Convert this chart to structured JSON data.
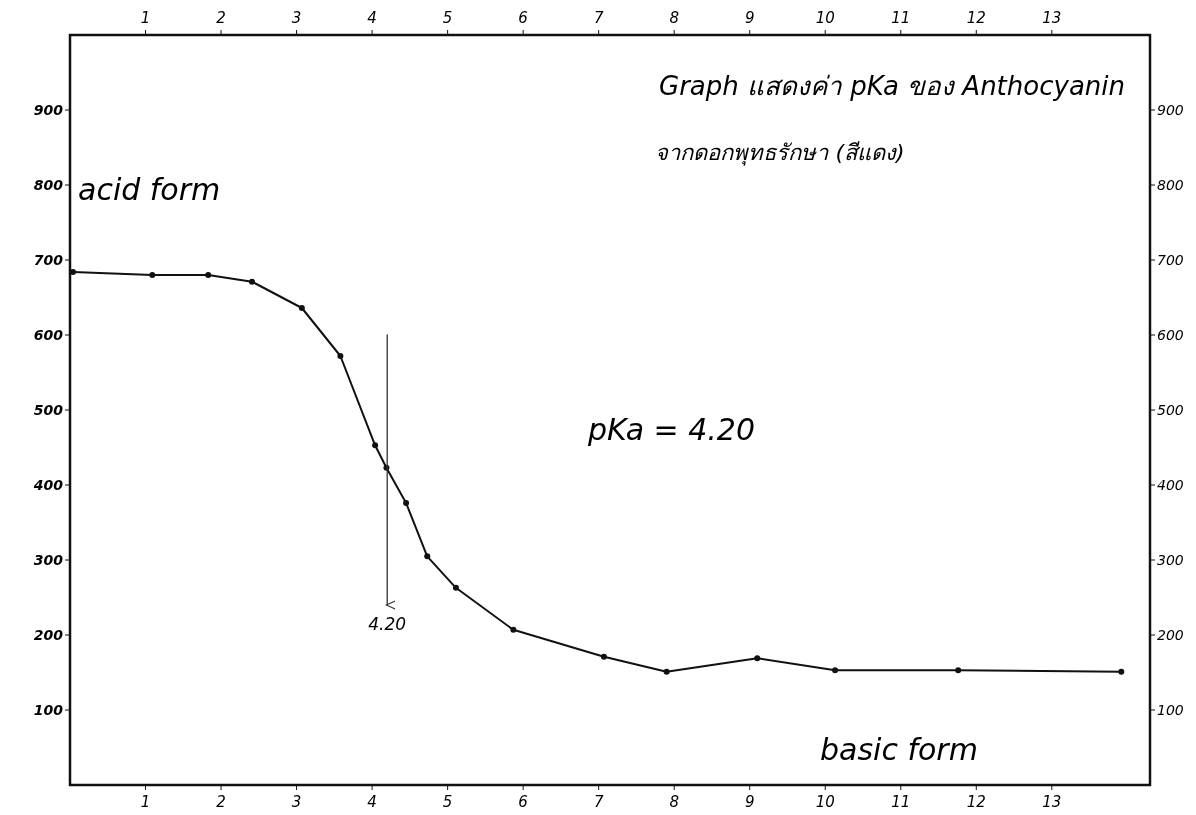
{
  "chart_data": {
    "type": "line",
    "title": "Graph แสดงค่า pKa ของ Anthocyanin",
    "subtitle": "จากดอกพุทธรักษา (สีแดง)",
    "series": [
      {
        "color": "#111111",
        "marker": "circle",
        "x": [
          0.04,
          1.09,
          1.83,
          2.41,
          3.07,
          3.58,
          4.04,
          4.19,
          4.45,
          4.73,
          5.11,
          5.87,
          7.07,
          7.9,
          9.1,
          10.13,
          11.76,
          13.92
        ],
        "values": [
          684,
          680,
          680,
          671,
          636,
          572,
          453,
          423,
          376,
          305,
          263,
          207,
          171,
          151,
          169,
          153,
          153,
          151
        ]
      },
      {
        "color": "#333333",
        "marker": "none",
        "x": [
          4.2,
          4.2
        ],
        "values": [
          600,
          240
        ]
      }
    ],
    "annotations": [
      "4.20",
      "acid form",
      "pKa = 4.20",
      "basic form"
    ],
    "xlim": [
      0,
      14.3
    ],
    "xticks": [
      1,
      2,
      3,
      4,
      5,
      6,
      7,
      8,
      9,
      10,
      11,
      12,
      13
    ],
    "x2lim": [
      0,
      14.3
    ],
    "x2ticks": [
      1,
      2,
      3,
      4,
      5,
      6,
      7,
      8,
      9,
      10,
      11,
      12,
      13
    ],
    "ylim": [
      0,
      1000
    ],
    "yticks": [
      100,
      200,
      300,
      400,
      500,
      600,
      700,
      800,
      900
    ],
    "y2lim": [
      0,
      1000
    ],
    "y2ticks": [
      100,
      200,
      300,
      400,
      500,
      600,
      700,
      800,
      900
    ],
    "line_style": "solid",
    "grid": false
  }
}
